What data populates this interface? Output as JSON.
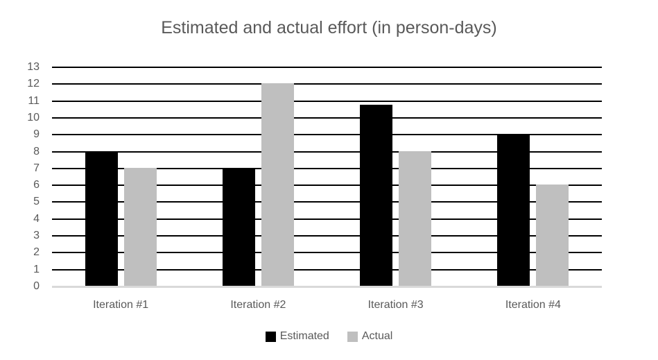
{
  "chart_data": {
    "type": "bar",
    "title": "Estimated and actual effort (in person-days)",
    "categories": [
      "Iteration #1",
      "Iteration #2",
      "Iteration #3",
      "Iteration #4"
    ],
    "series": [
      {
        "name": "Estimated",
        "color": "#000000",
        "values": [
          8,
          7,
          10.75,
          9
        ]
      },
      {
        "name": "Actual",
        "color": "#bfbfbf",
        "values": [
          7,
          12,
          8,
          6
        ]
      }
    ],
    "xlabel": "",
    "ylabel": "",
    "ylim": [
      0,
      13
    ],
    "yticks": [
      0,
      1,
      2,
      3,
      4,
      5,
      6,
      7,
      8,
      9,
      10,
      11,
      12,
      13
    ],
    "grid": "horizontal",
    "legend_position": "bottom",
    "colors": {
      "gridline": "#000000",
      "baseline": "#d9d9d9",
      "text": "#595959",
      "background": "#ffffff"
    }
  }
}
